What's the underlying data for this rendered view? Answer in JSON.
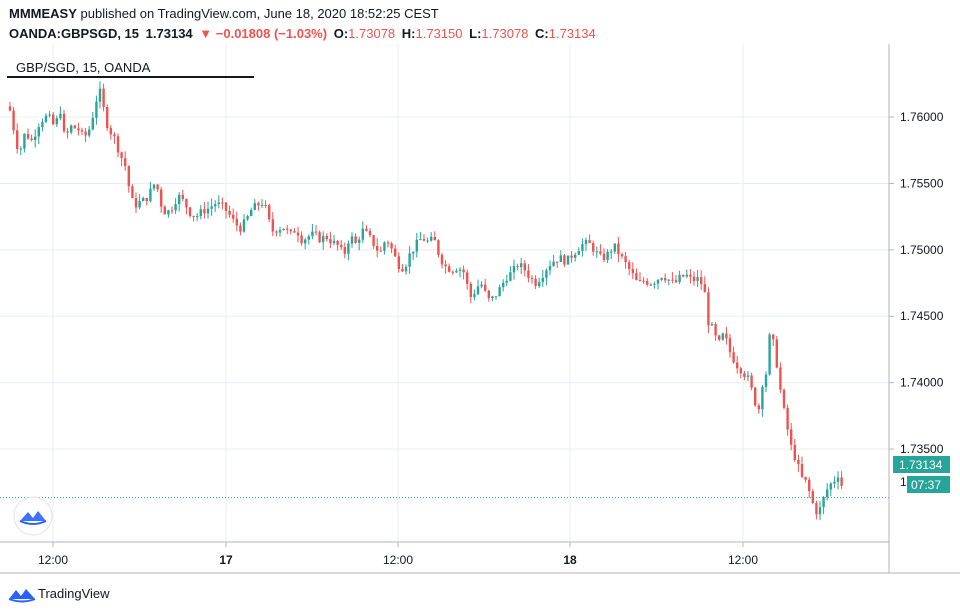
{
  "header": {
    "author": "MMMEASY",
    "published": "published on TradingView.com, June 18, 2020 18:52:25 CEST",
    "symbol": "OANDA:GBPSGD, 15",
    "last": "1.73134",
    "change": "▼ −0.01808 (−1.03%)",
    "o_label": "O:",
    "o": "1.73078",
    "h_label": "H:",
    "h": "1.73150",
    "l_label": "L:",
    "l": "1.73078",
    "c_label": "C:",
    "c": "1.73134"
  },
  "legend_label": "GBP/SGD, 15, OANDA",
  "footer_brand": "TradingView",
  "colors": {
    "up": "#26a69a",
    "down": "#ef5350",
    "grid": "#e8edf1",
    "price_line": "#26a69a"
  },
  "chart_data": {
    "type": "candlestick",
    "title": "GBP/SGD, 15, OANDA",
    "ylim": [
      1.728,
      1.7655
    ],
    "y_ticks": [
      1.76,
      1.755,
      1.75,
      1.745,
      1.74,
      1.735
    ],
    "y_tick_labels": [
      "1.76000",
      "1.75500",
      "1.75000",
      "1.74500",
      "1.74000",
      "1.73500"
    ],
    "x_ticks": [
      "12:00",
      "17",
      "12:00",
      "18",
      "12:00"
    ],
    "x_ticks_bold": [
      false,
      true,
      false,
      true,
      false
    ],
    "last_price_label": "1.73134",
    "countdown_label": "07:37",
    "partial_axis_label": "1",
    "last_price": 1.73134,
    "series": [
      {
        "t": 0,
        "c": 1.7605
      },
      {
        "t": 4,
        "c": 1.759
      },
      {
        "t": 9,
        "c": 1.7572
      },
      {
        "t": 15,
        "c": 1.7588
      },
      {
        "t": 22,
        "c": 1.7582
      },
      {
        "t": 30,
        "c": 1.7597
      },
      {
        "t": 38,
        "c": 1.7601
      },
      {
        "t": 45,
        "c": 1.7592
      },
      {
        "t": 50,
        "c": 1.7607
      },
      {
        "t": 55,
        "c": 1.7582
      },
      {
        "t": 60,
        "c": 1.7593
      },
      {
        "t": 68,
        "c": 1.7591
      },
      {
        "t": 74,
        "c": 1.7584
      },
      {
        "t": 80,
        "c": 1.7592
      },
      {
        "t": 85,
        "c": 1.7608
      },
      {
        "t": 89,
        "c": 1.7622
      },
      {
        "t": 93,
        "c": 1.7608
      },
      {
        "t": 98,
        "c": 1.7592
      },
      {
        "t": 104,
        "c": 1.7585
      },
      {
        "t": 110,
        "c": 1.7572
      },
      {
        "t": 116,
        "c": 1.7562
      },
      {
        "t": 120,
        "c": 1.7542
      },
      {
        "t": 124,
        "c": 1.7533
      },
      {
        "t": 130,
        "c": 1.7536
      },
      {
        "t": 136,
        "c": 1.7538
      },
      {
        "t": 141,
        "c": 1.7545
      },
      {
        "t": 146,
        "c": 1.7552
      },
      {
        "t": 150,
        "c": 1.7536
      },
      {
        "t": 156,
        "c": 1.7527
      },
      {
        "t": 162,
        "c": 1.7532
      },
      {
        "t": 168,
        "c": 1.7541
      },
      {
        "t": 174,
        "c": 1.7536
      },
      {
        "t": 180,
        "c": 1.7528
      },
      {
        "t": 186,
        "c": 1.7525
      },
      {
        "t": 192,
        "c": 1.7529
      },
      {
        "t": 198,
        "c": 1.7531
      },
      {
        "t": 205,
        "c": 1.7535
      },
      {
        "t": 212,
        "c": 1.7533
      },
      {
        "t": 218,
        "c": 1.7528
      },
      {
        "t": 224,
        "c": 1.7521
      },
      {
        "t": 230,
        "c": 1.7516
      },
      {
        "t": 236,
        "c": 1.7522
      },
      {
        "t": 242,
        "c": 1.7531
      },
      {
        "t": 248,
        "c": 1.7534
      },
      {
        "t": 254,
        "c": 1.7536
      },
      {
        "t": 258,
        "c": 1.7524
      },
      {
        "t": 262,
        "c": 1.7514
      },
      {
        "t": 268,
        "c": 1.7516
      },
      {
        "t": 274,
        "c": 1.7517
      },
      {
        "t": 280,
        "c": 1.7511
      },
      {
        "t": 286,
        "c": 1.7516
      },
      {
        "t": 292,
        "c": 1.7507
      },
      {
        "t": 298,
        "c": 1.751
      },
      {
        "t": 304,
        "c": 1.7512
      },
      {
        "t": 310,
        "c": 1.7508
      },
      {
        "t": 316,
        "c": 1.751
      },
      {
        "t": 322,
        "c": 1.7506
      },
      {
        "t": 328,
        "c": 1.7503
      },
      {
        "t": 334,
        "c": 1.7496
      },
      {
        "t": 340,
        "c": 1.7511
      },
      {
        "t": 346,
        "c": 1.7504
      },
      {
        "t": 352,
        "c": 1.7515
      },
      {
        "t": 358,
        "c": 1.7511
      },
      {
        "t": 364,
        "c": 1.7504
      },
      {
        "t": 370,
        "c": 1.7497
      },
      {
        "t": 376,
        "c": 1.7509
      },
      {
        "t": 382,
        "c": 1.75
      },
      {
        "t": 388,
        "c": 1.7489
      },
      {
        "t": 394,
        "c": 1.7486
      },
      {
        "t": 400,
        "c": 1.7497
      },
      {
        "t": 406,
        "c": 1.7504
      },
      {
        "t": 412,
        "c": 1.7509
      },
      {
        "t": 418,
        "c": 1.7506
      },
      {
        "t": 424,
        "c": 1.7508
      },
      {
        "t": 430,
        "c": 1.7494
      },
      {
        "t": 436,
        "c": 1.7487
      },
      {
        "t": 442,
        "c": 1.7485
      },
      {
        "t": 448,
        "c": 1.7487
      },
      {
        "t": 454,
        "c": 1.7483
      },
      {
        "t": 458,
        "c": 1.7471
      },
      {
        "t": 462,
        "c": 1.7462
      },
      {
        "t": 466,
        "c": 1.7472
      },
      {
        "t": 472,
        "c": 1.7474
      },
      {
        "t": 478,
        "c": 1.7462
      },
      {
        "t": 484,
        "c": 1.7464
      },
      {
        "t": 490,
        "c": 1.7471
      },
      {
        "t": 496,
        "c": 1.7479
      },
      {
        "t": 502,
        "c": 1.7483
      },
      {
        "t": 508,
        "c": 1.7489
      },
      {
        "t": 514,
        "c": 1.7486
      },
      {
        "t": 520,
        "c": 1.7479
      },
      {
        "t": 526,
        "c": 1.7475
      },
      {
        "t": 532,
        "c": 1.7481
      },
      {
        "t": 538,
        "c": 1.7488
      },
      {
        "t": 544,
        "c": 1.7492
      },
      {
        "t": 550,
        "c": 1.7494
      },
      {
        "t": 556,
        "c": 1.7491
      },
      {
        "t": 562,
        "c": 1.7496
      },
      {
        "t": 568,
        "c": 1.7501
      },
      {
        "t": 574,
        "c": 1.7505
      },
      {
        "t": 580,
        "c": 1.7504
      },
      {
        "t": 586,
        "c": 1.7498
      },
      {
        "t": 592,
        "c": 1.7493
      },
      {
        "t": 598,
        "c": 1.7497
      },
      {
        "t": 604,
        "c": 1.7503
      },
      {
        "t": 610,
        "c": 1.7496
      },
      {
        "t": 616,
        "c": 1.7489
      },
      {
        "t": 622,
        "c": 1.7482
      },
      {
        "t": 628,
        "c": 1.7474
      },
      {
        "t": 634,
        "c": 1.7477
      },
      {
        "t": 640,
        "c": 1.7475
      },
      {
        "t": 646,
        "c": 1.7477
      },
      {
        "t": 652,
        "c": 1.7481
      },
      {
        "t": 658,
        "c": 1.7478
      },
      {
        "t": 664,
        "c": 1.7474
      },
      {
        "t": 670,
        "c": 1.7479
      },
      {
        "t": 676,
        "c": 1.7481
      },
      {
        "t": 682,
        "c": 1.7477
      },
      {
        "t": 688,
        "c": 1.7478
      },
      {
        "t": 694,
        "c": 1.7472
      },
      {
        "t": 698,
        "c": 1.7446
      },
      {
        "t": 703,
        "c": 1.744
      },
      {
        "t": 708,
        "c": 1.7428
      },
      {
        "t": 714,
        "c": 1.7437
      },
      {
        "t": 720,
        "c": 1.7423
      },
      {
        "t": 726,
        "c": 1.7414
      },
      {
        "t": 732,
        "c": 1.7409
      },
      {
        "t": 738,
        "c": 1.7403
      },
      {
        "t": 744,
        "c": 1.7389
      },
      {
        "t": 748,
        "c": 1.7376
      },
      {
        "t": 752,
        "c": 1.7399
      },
      {
        "t": 756,
        "c": 1.7407
      },
      {
        "t": 760,
        "c": 1.7437
      },
      {
        "t": 764,
        "c": 1.7428
      },
      {
        "t": 768,
        "c": 1.7408
      },
      {
        "t": 772,
        "c": 1.7385
      },
      {
        "t": 776,
        "c": 1.7372
      },
      {
        "t": 780,
        "c": 1.7354
      },
      {
        "t": 784,
        "c": 1.7346
      },
      {
        "t": 788,
        "c": 1.7337
      },
      {
        "t": 792,
        "c": 1.7328
      },
      {
        "t": 796,
        "c": 1.7325
      },
      {
        "t": 800,
        "c": 1.7316
      },
      {
        "t": 804,
        "c": 1.7306
      },
      {
        "t": 808,
        "c": 1.7301
      },
      {
        "t": 812,
        "c": 1.7309
      },
      {
        "t": 816,
        "c": 1.7318
      },
      {
        "t": 820,
        "c": 1.7323
      },
      {
        "t": 824,
        "c": 1.7326
      },
      {
        "t": 828,
        "c": 1.7331
      },
      {
        "t": 832,
        "c": 1.7322
      },
      {
        "t": 836,
        "c": 1.7313
      }
    ]
  }
}
